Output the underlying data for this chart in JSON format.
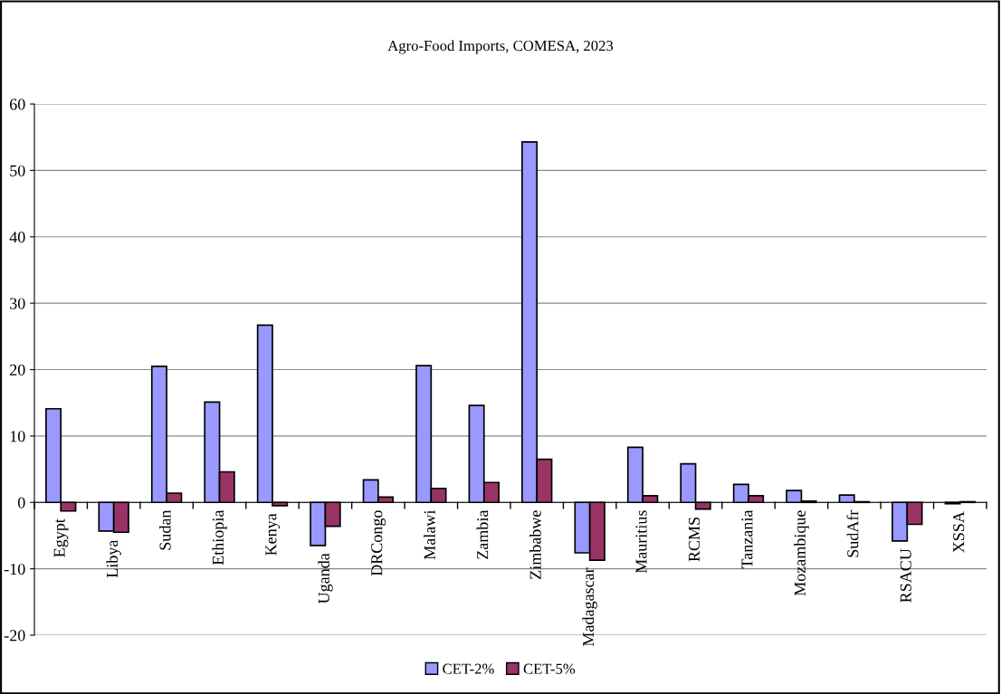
{
  "chart_data": {
    "type": "bar",
    "title": "Agro-Food Imports, COMESA, 2023",
    "categories": [
      "Egypt",
      "Libya",
      "Sudan",
      "Ethiopia",
      "Kenya",
      "Uganda",
      "DRCongo",
      "Malawi",
      "Zambia",
      "Zimbabwe",
      "Madagascar",
      "Mauritius",
      "RCMS",
      "Tanzania",
      "Mozambique",
      "SudAfr",
      "RSACU",
      "XSSA"
    ],
    "series": [
      {
        "name": "CET-2%",
        "color": "#9999ff",
        "values": [
          14.1,
          -4.3,
          20.5,
          15.1,
          26.7,
          -6.5,
          3.4,
          20.6,
          14.6,
          54.3,
          -7.6,
          8.3,
          5.8,
          2.7,
          1.8,
          1.1,
          -5.8,
          -0.2
        ]
      },
      {
        "name": "CET-5%",
        "color": "#993366",
        "values": [
          -1.3,
          -4.5,
          1.4,
          4.6,
          -0.5,
          -3.6,
          0.8,
          2.1,
          3.0,
          6.5,
          -8.7,
          1.0,
          -1.0,
          1.0,
          0.2,
          0.1,
          -3.3,
          0.1
        ]
      }
    ],
    "ylim": [
      -20,
      60
    ],
    "yticks": [
      -20,
      -10,
      0,
      10,
      20,
      30,
      40,
      50,
      60
    ],
    "grid": "y",
    "legend": "bottom"
  }
}
